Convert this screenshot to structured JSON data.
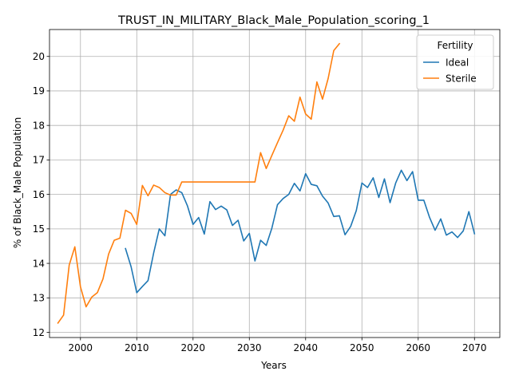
{
  "chart_data": {
    "type": "line",
    "title": "TRUST_IN_MILITARY_Black_Male_Population_scoring_1",
    "xlabel": "Years",
    "ylabel": "% of Black_Male Population",
    "xlim": [
      1994.5,
      2074.5
    ],
    "ylim": [
      11.85,
      20.78
    ],
    "xticks": [
      2000,
      2010,
      2020,
      2030,
      2040,
      2050,
      2060,
      2070
    ],
    "yticks": [
      12,
      13,
      14,
      15,
      16,
      17,
      18,
      19,
      20
    ],
    "grid": true,
    "legend": {
      "title": "Fertility",
      "position": "top-right"
    },
    "series": [
      {
        "name": "Ideal",
        "color": "#1f77b4",
        "x": [
          2008,
          2009,
          2010,
          2011,
          2012,
          2013,
          2014,
          2015,
          2016,
          2017,
          2018,
          2019,
          2020,
          2021,
          2022,
          2023,
          2024,
          2025,
          2026,
          2027,
          2028,
          2029,
          2030,
          2031,
          2032,
          2033,
          2034,
          2035,
          2036,
          2037,
          2038,
          2039,
          2040,
          2041,
          2042,
          2043,
          2044,
          2045,
          2046,
          2047,
          2048,
          2049,
          2050,
          2051,
          2052,
          2053,
          2054,
          2055,
          2056,
          2057,
          2058,
          2059,
          2060,
          2061,
          2062,
          2063,
          2064,
          2065,
          2066,
          2067,
          2068,
          2069,
          2070
        ],
        "y": [
          14.43,
          13.9,
          13.15,
          13.33,
          13.5,
          14.3,
          15.0,
          14.8,
          16.0,
          16.13,
          16.05,
          15.67,
          15.13,
          15.33,
          14.85,
          15.79,
          15.56,
          15.66,
          15.55,
          15.1,
          15.25,
          14.65,
          14.87,
          14.07,
          14.67,
          14.52,
          15.02,
          15.7,
          15.88,
          16.0,
          16.32,
          16.1,
          16.6,
          16.29,
          16.25,
          15.95,
          15.75,
          15.36,
          15.38,
          14.83,
          15.07,
          15.53,
          16.33,
          16.2,
          16.48,
          15.91,
          16.45,
          15.76,
          16.33,
          16.7,
          16.4,
          16.66,
          15.83,
          15.83,
          15.34,
          14.96,
          15.29,
          14.82,
          14.91,
          14.75,
          14.94,
          15.5,
          14.86
        ]
      },
      {
        "name": "Sterile",
        "color": "#ff7f0e",
        "x": [
          1996,
          1997,
          1998,
          1999,
          2000,
          2001,
          2002,
          2003,
          2004,
          2005,
          2006,
          2007,
          2008,
          2009,
          2010,
          2011,
          2012,
          2013,
          2014,
          2015,
          2016,
          2017,
          2018,
          2019,
          2020,
          2021,
          2022,
          2023,
          2024,
          2025,
          2026,
          2027,
          2028,
          2029,
          2030,
          2031,
          2032,
          2033,
          2034,
          2035,
          2036,
          2037,
          2038,
          2039,
          2040,
          2041,
          2042,
          2043,
          2044,
          2045,
          2046
        ],
        "y": [
          12.27,
          12.5,
          13.95,
          14.48,
          13.32,
          12.74,
          13.02,
          13.15,
          13.55,
          14.27,
          14.67,
          14.73,
          15.54,
          15.45,
          15.13,
          16.26,
          15.96,
          16.27,
          16.2,
          16.05,
          15.98,
          15.98,
          16.36,
          16.36,
          16.36,
          16.36,
          16.36,
          16.36,
          16.36,
          16.36,
          16.36,
          16.36,
          16.36,
          16.36,
          16.36,
          16.36,
          17.21,
          16.75,
          17.13,
          17.5,
          17.86,
          18.28,
          18.12,
          18.82,
          18.33,
          18.18,
          19.26,
          18.76,
          19.36,
          20.17,
          20.37
        ]
      }
    ]
  }
}
